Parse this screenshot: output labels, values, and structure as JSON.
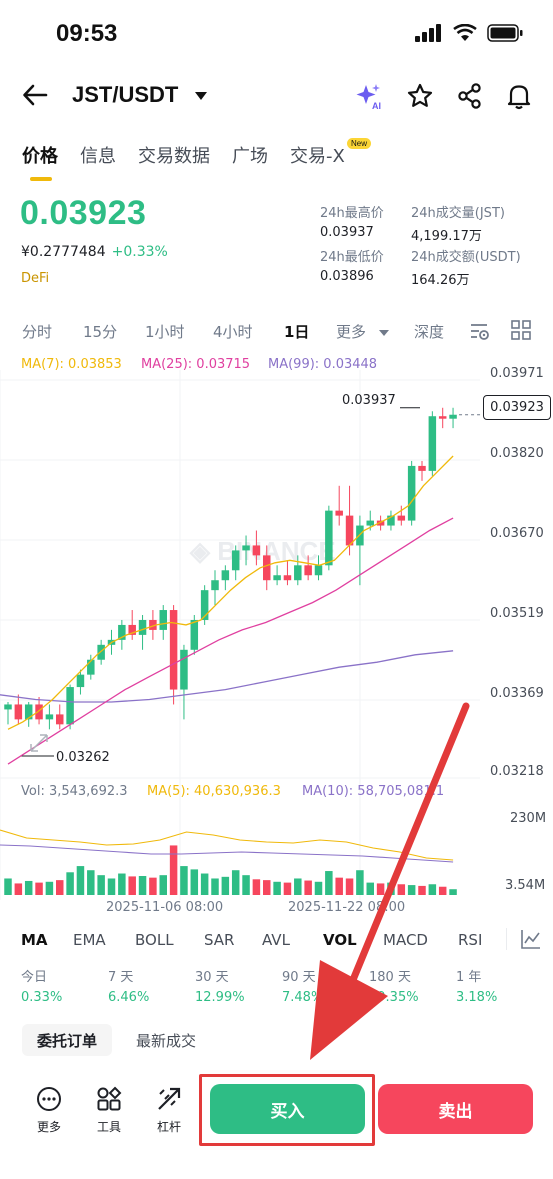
{
  "status_bar": {
    "time": "09:53"
  },
  "header": {
    "pair": "JST/USDT"
  },
  "tabs": [
    {
      "label": "价格"
    },
    {
      "label": "信息"
    },
    {
      "label": "交易数据"
    },
    {
      "label": "广场"
    },
    {
      "label": "交易-X"
    }
  ],
  "new_badge": "New",
  "price": {
    "last": "0.03923",
    "cny": "¥0.2777484",
    "change": "+0.33%",
    "tag": "DeFi"
  },
  "stats": {
    "high_label": "24h最高价",
    "high": "0.03937",
    "vol_jst_label": "24h成交量(JST)",
    "vol_jst": "4,199.17万",
    "low_label": "24h最低价",
    "low": "0.03896",
    "vol_usdt_label": "24h成交额(USDT)",
    "vol_usdt": "164.26万"
  },
  "intervals": [
    "分时",
    "15分",
    "1小时",
    "4小时",
    "1日",
    "更多",
    "深度"
  ],
  "active_interval": "1日",
  "ma_labels": {
    "ma7": "MA(7): 0.03853",
    "ma25": "MA(25): 0.03715",
    "ma99": "MA(99): 0.03448"
  },
  "colors": {
    "up": "#2ebd85",
    "down": "#f6465d",
    "ma7": "#f0b90b",
    "ma25": "#e040a0",
    "ma99": "#8a72c8",
    "accent": "#f0b90b"
  },
  "chart_data": {
    "type": "candlestick",
    "y_axis_labels": [
      "0.03971",
      "0.03820",
      "0.03670",
      "0.03519",
      "0.03369",
      "0.03218"
    ],
    "ylim": [
      0.03188,
      0.04013
    ],
    "x_tick_labels": [
      "2025-11-06 08:00",
      "2025-11-22 08:00"
    ],
    "current_price_label": "0.03923",
    "max_label": "0.03937",
    "min_label": "0.03262",
    "candles": [
      [
        0.0333,
        0.03345,
        0.033,
        0.0334
      ],
      [
        0.0334,
        0.0336,
        0.033,
        0.0331
      ],
      [
        0.0331,
        0.03345,
        0.03295,
        0.0334
      ],
      [
        0.0334,
        0.03355,
        0.033,
        0.0331
      ],
      [
        0.0331,
        0.0334,
        0.0329,
        0.0332
      ],
      [
        0.0332,
        0.0334,
        0.0329,
        0.033
      ],
      [
        0.033,
        0.0338,
        0.0329,
        0.03375
      ],
      [
        0.03375,
        0.0341,
        0.0336,
        0.034
      ],
      [
        0.034,
        0.0344,
        0.0339,
        0.0343
      ],
      [
        0.0343,
        0.0347,
        0.0342,
        0.0346
      ],
      [
        0.0346,
        0.0349,
        0.0344,
        0.0347
      ],
      [
        0.0347,
        0.0351,
        0.0345,
        0.035
      ],
      [
        0.035,
        0.0353,
        0.0347,
        0.0348
      ],
      [
        0.0348,
        0.0352,
        0.0345,
        0.0351
      ],
      [
        0.0351,
        0.0353,
        0.0347,
        0.0349
      ],
      [
        0.0349,
        0.0354,
        0.0347,
        0.0353
      ],
      [
        0.0353,
        0.0354,
        0.0334,
        0.0337
      ],
      [
        0.0337,
        0.0346,
        0.0331,
        0.0345
      ],
      [
        0.0345,
        0.0352,
        0.0344,
        0.0351
      ],
      [
        0.0351,
        0.0358,
        0.035,
        0.0357
      ],
      [
        0.0357,
        0.0361,
        0.0354,
        0.0359
      ],
      [
        0.0359,
        0.0362,
        0.0357,
        0.0361
      ],
      [
        0.0361,
        0.0366,
        0.0359,
        0.0365
      ],
      [
        0.0365,
        0.0368,
        0.0362,
        0.0366
      ],
      [
        0.0366,
        0.0369,
        0.0362,
        0.0364
      ],
      [
        0.0364,
        0.0366,
        0.0357,
        0.0359
      ],
      [
        0.0359,
        0.0362,
        0.0358,
        0.036
      ],
      [
        0.036,
        0.0363,
        0.0358,
        0.0359
      ],
      [
        0.0359,
        0.0364,
        0.0358,
        0.0362
      ],
      [
        0.0362,
        0.0364,
        0.0359,
        0.036
      ],
      [
        0.036,
        0.0364,
        0.0359,
        0.0362
      ],
      [
        0.0362,
        0.0374,
        0.0361,
        0.0373
      ],
      [
        0.0373,
        0.0378,
        0.037,
        0.0372
      ],
      [
        0.0372,
        0.0378,
        0.0364,
        0.0366
      ],
      [
        0.0366,
        0.0372,
        0.0358,
        0.037
      ],
      [
        0.037,
        0.0373,
        0.0369,
        0.0371
      ],
      [
        0.0371,
        0.0372,
        0.0369,
        0.037
      ],
      [
        0.037,
        0.0373,
        0.0369,
        0.0372
      ],
      [
        0.0372,
        0.0374,
        0.037,
        0.0371
      ],
      [
        0.0371,
        0.0383,
        0.037,
        0.0382
      ],
      [
        0.0382,
        0.0383,
        0.0379,
        0.0381
      ],
      [
        0.0381,
        0.0393,
        0.038,
        0.0392
      ],
      [
        0.0392,
        0.03937,
        0.03896,
        0.03915
      ],
      [
        0.03915,
        0.03937,
        0.03896,
        0.03923
      ]
    ],
    "ma7": [
      0.0329,
      0.03305,
      0.03325,
      0.0335,
      0.0338,
      0.0341,
      0.0344,
      0.03465,
      0.0348,
      0.0349,
      0.035,
      0.03505,
      0.035,
      0.0351,
      0.0354,
      0.0357,
      0.03595,
      0.03615,
      0.03625,
      0.0363,
      0.03625,
      0.0362,
      0.0363,
      0.0366,
      0.0369,
      0.03705,
      0.0372,
      0.0374,
      0.0378,
      0.0381,
      0.0384
    ],
    "ma25": [
      0.0322,
      0.0325,
      0.0328,
      0.0331,
      0.0334,
      0.0337,
      0.03395,
      0.0342,
      0.03445,
      0.0347,
      0.0349,
      0.03505,
      0.03525,
      0.03545,
      0.0357,
      0.036,
      0.0363,
      0.0366,
      0.0369,
      0.03715
    ],
    "ma99": [
      0.0336,
      0.0335,
      0.03345,
      0.03345,
      0.0335,
      0.0336,
      0.0337,
      0.03385,
      0.034,
      0.03415,
      0.03425,
      0.0344,
      0.03448
    ]
  },
  "volume": {
    "vol_label": "Vol: 3,543,692.3",
    "ma5_label": "MA(5): 40,630,936.3",
    "ma10_label": "MA(10): 58,705,081.1",
    "y_top": "230M",
    "y_bottom": "3.54M"
  },
  "indicators": [
    "MA",
    "EMA",
    "BOLL",
    "SAR",
    "AVL",
    "VOL",
    "MACD",
    "RSI"
  ],
  "active_indicators": [
    "MA",
    "VOL"
  ],
  "returns": [
    {
      "label": "今日",
      "value": "0.33%"
    },
    {
      "label": "7 天",
      "value": "6.46%"
    },
    {
      "label": "30 天",
      "value": "12.99%"
    },
    {
      "label": "90 天",
      "value": "7.48%"
    },
    {
      "label": "180 天",
      "value": "19.35%"
    },
    {
      "label": "1 年",
      "value": "3.18%"
    }
  ],
  "order_tabs": {
    "active": "委托订单",
    "other": "最新成交"
  },
  "bottom_bar": {
    "more": "更多",
    "tools": "工具",
    "leverage": "杠杆",
    "buy": "买入",
    "sell": "卖出"
  }
}
